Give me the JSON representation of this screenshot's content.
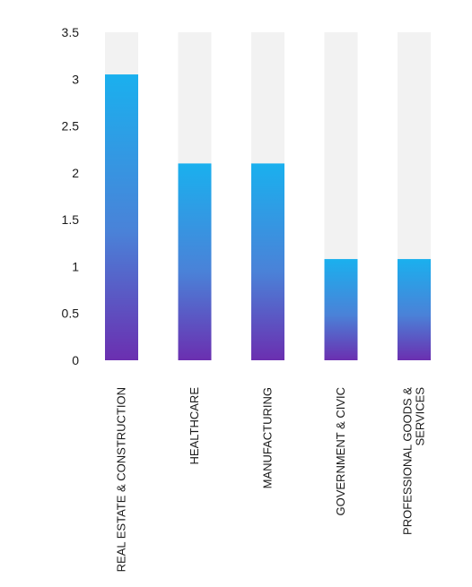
{
  "chart_data": {
    "type": "bar",
    "categories": [
      [
        "REAL ESTATE & CONSTRUCTION"
      ],
      [
        "HEALTHCARE"
      ],
      [
        "MANUFACTURING"
      ],
      [
        "GOVERNMENT & CIVIC"
      ],
      [
        "PROFESSIONAL GOODS &",
        "SERVICES"
      ]
    ],
    "values": [
      3.05,
      2.1,
      2.1,
      1.08,
      1.08
    ],
    "ylim": [
      0,
      3.5
    ],
    "yticks": [
      "0",
      "0.5",
      "1",
      "1.5",
      "2",
      "2.5",
      "3",
      "3.5"
    ],
    "grid": false,
    "track_color": "#f2f2f2",
    "gradient": {
      "top": "#1ab0ee",
      "bottom": "#6b2fb0"
    }
  }
}
